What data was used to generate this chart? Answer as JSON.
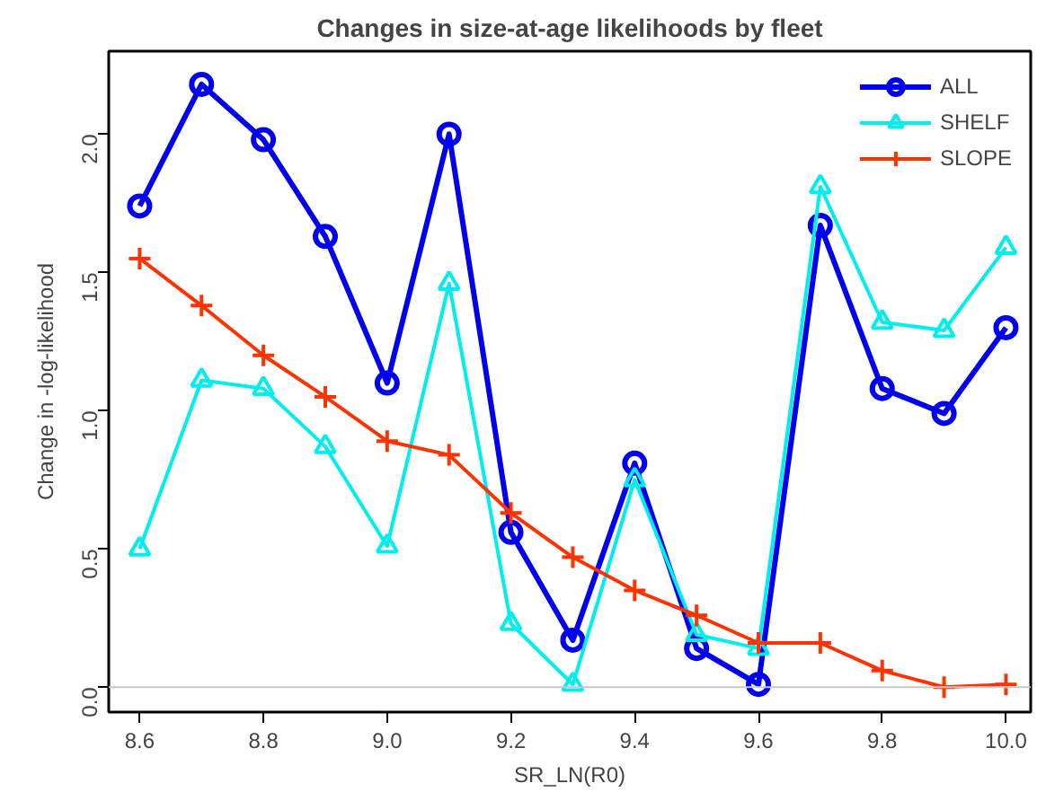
{
  "chart_data": {
    "type": "line",
    "title": "Changes in size-at-age likelihoods by fleet",
    "xlabel": "SR_LN(R0)",
    "ylabel": "Change in -log-likelihood",
    "x": [
      8.6,
      8.7,
      8.8,
      8.9,
      9.0,
      9.1,
      9.2,
      9.3,
      9.4,
      9.5,
      9.6,
      9.7,
      9.8,
      9.9,
      10.0
    ],
    "series": [
      {
        "name": "ALL",
        "color": "#0000ee",
        "marker": "circle",
        "values": [
          1.74,
          2.18,
          1.98,
          1.63,
          1.1,
          2.0,
          0.56,
          0.17,
          0.81,
          0.14,
          0.01,
          1.67,
          1.08,
          0.99,
          1.3
        ]
      },
      {
        "name": "SHELF",
        "color": "#00eeee",
        "marker": "triangle",
        "values": [
          0.5,
          1.11,
          1.08,
          0.87,
          0.51,
          1.46,
          0.23,
          0.01,
          0.75,
          0.19,
          0.14,
          1.81,
          1.32,
          1.29,
          1.59
        ]
      },
      {
        "name": "SLOPE",
        "color": "#ff3300",
        "marker": "cross",
        "values": [
          1.55,
          1.38,
          1.2,
          1.05,
          0.89,
          0.84,
          0.63,
          0.47,
          0.35,
          0.26,
          0.16,
          0.16,
          0.06,
          0.0,
          0.01
        ]
      }
    ],
    "xlim": [
      8.55,
      10.04
    ],
    "ylim": [
      -0.09,
      2.3
    ],
    "xticks": [
      {
        "value": 8.6,
        "label": "8.6"
      },
      {
        "value": 8.8,
        "label": "8.8"
      },
      {
        "value": 9.0,
        "label": "9.0"
      },
      {
        "value": 9.2,
        "label": "9.2"
      },
      {
        "value": 9.4,
        "label": "9.4"
      },
      {
        "value": 9.6,
        "label": "9.6"
      },
      {
        "value": 9.8,
        "label": "9.8"
      },
      {
        "value": 10.0,
        "label": "10.0"
      }
    ],
    "yticks": [
      {
        "value": 0,
        "label": "0.0"
      },
      {
        "value": 0.5,
        "label": "0.5"
      },
      {
        "value": 1.0,
        "label": "1.0"
      },
      {
        "value": 1.5,
        "label": "1.5"
      },
      {
        "value": 2.0,
        "label": "2.0"
      }
    ],
    "ref_lines": [
      {
        "axis": "y",
        "value": 0,
        "color": "#c8c8c8"
      }
    ],
    "grid": false,
    "legend": "top right"
  }
}
